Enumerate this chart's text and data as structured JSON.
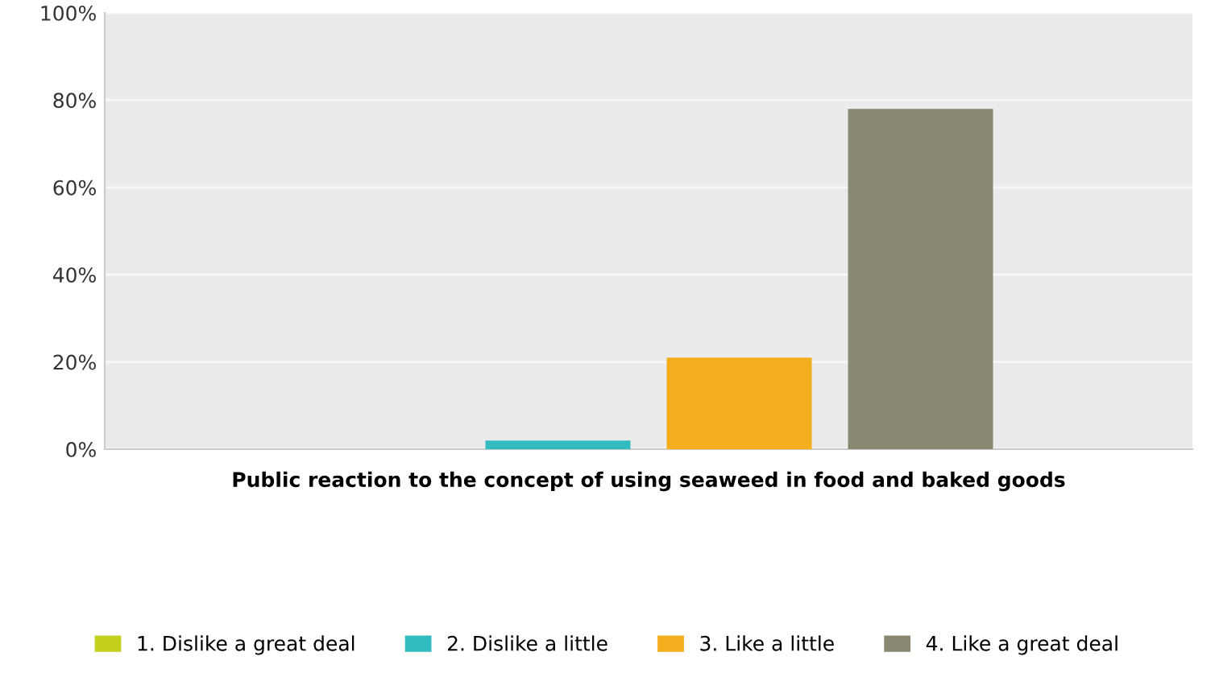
{
  "chart_data": {
    "type": "bar",
    "categories": [
      "Public reaction to the concept of using seaweed in food and baked goods"
    ],
    "series": [
      {
        "name": "1. Dislike a great deal",
        "color": "#c5cf1e",
        "values": [
          0
        ]
      },
      {
        "name": "2. Dislike a little",
        "color": "#33bcc0",
        "values": [
          2
        ]
      },
      {
        "name": "3. Like a little",
        "color": "#f4ad1d",
        "values": [
          21
        ]
      },
      {
        "name": "4. Like a great deal",
        "color": "#8a8872",
        "values": [
          78
        ]
      }
    ],
    "ylim": [
      0,
      100
    ],
    "yticks": [
      {
        "value": 0,
        "label": "0%"
      },
      {
        "value": 20,
        "label": "20%"
      },
      {
        "value": 40,
        "label": "40%"
      },
      {
        "value": 60,
        "label": "60%"
      },
      {
        "value": 80,
        "label": "80%"
      },
      {
        "value": 100,
        "label": "100%"
      }
    ],
    "grid": "y",
    "legend": "bottom"
  }
}
